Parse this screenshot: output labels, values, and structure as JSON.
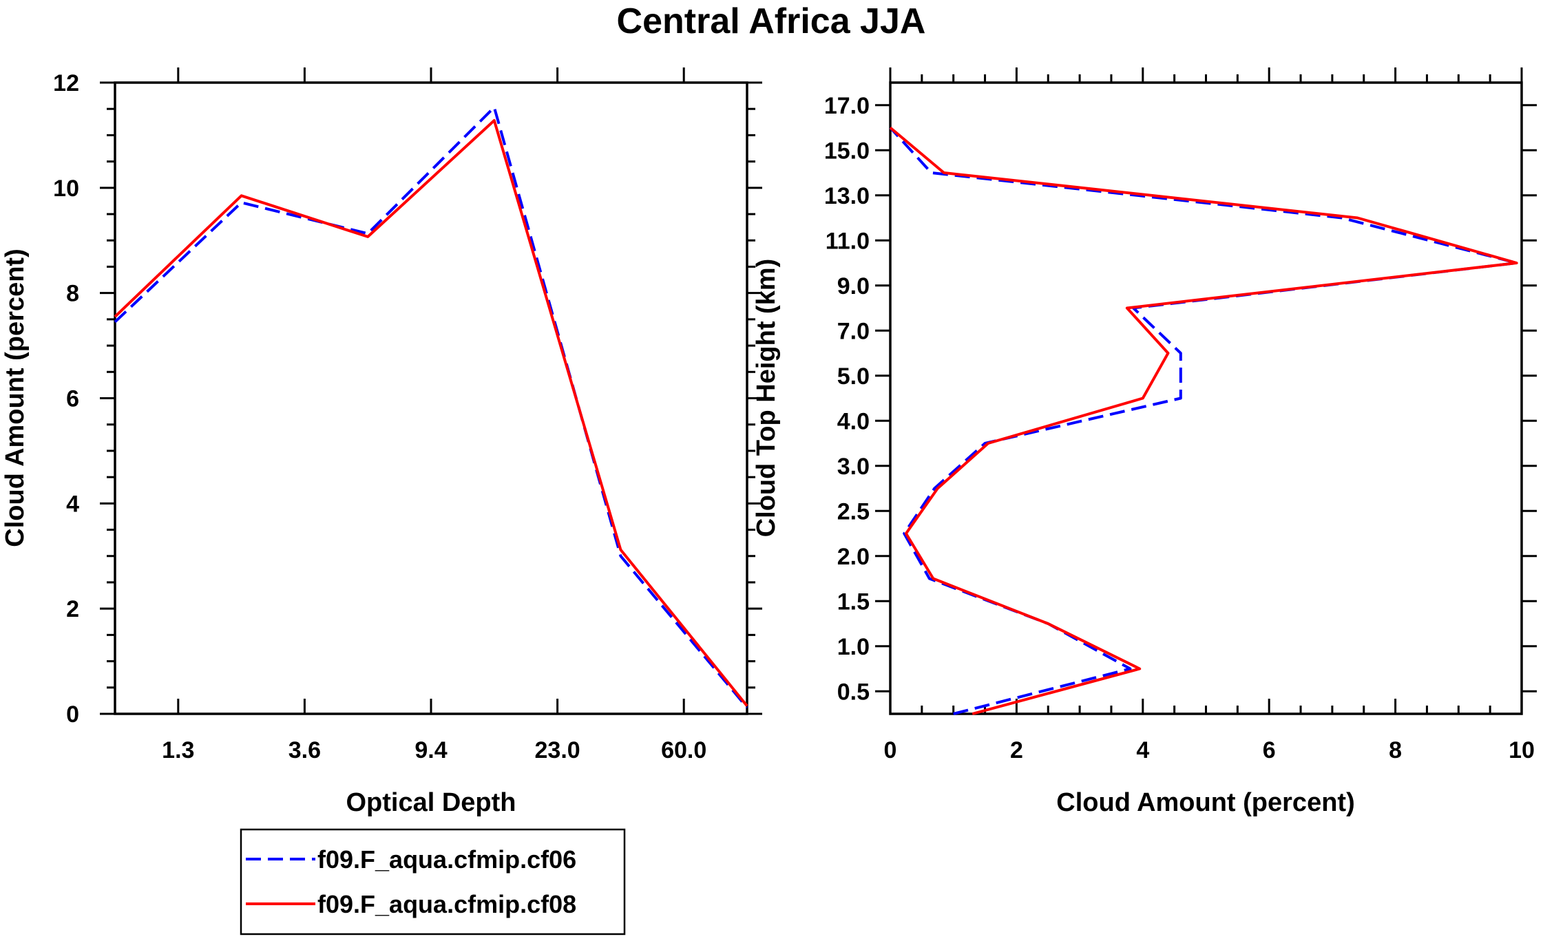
{
  "figure_title": "Central Africa JJA",
  "legend": [
    {
      "label": "f09.F_aqua.cfmip.cf06",
      "color": "#0000ff",
      "dash": true
    },
    {
      "label": "f09.F_aqua.cfmip.cf08",
      "color": "#ff0000",
      "dash": false
    }
  ],
  "chart_data": [
    {
      "type": "line",
      "title": "",
      "xlabel": "Optical Depth",
      "ylabel": "Cloud Amount (percent)",
      "x_index_range": [
        0,
        5
      ],
      "x_tick_positions": [
        0.5,
        1.5,
        2.5,
        3.5,
        4.5
      ],
      "x_tick_labels": [
        "1.3",
        "3.6",
        "9.4",
        "23.0",
        "60.0"
      ],
      "ylim": [
        0,
        12
      ],
      "y_ticks": [
        0,
        2,
        4,
        6,
        8,
        10,
        12
      ],
      "y_tick_labels": [
        "0",
        "2",
        "4",
        "6",
        "8",
        "10",
        "12"
      ],
      "x": [
        0,
        1,
        2,
        3,
        4,
        5
      ],
      "series": [
        {
          "name": "f09.F_aqua.cfmip.cf06",
          "values": [
            7.45,
            9.72,
            9.13,
            11.53,
            3.0,
            0.12
          ]
        },
        {
          "name": "f09.F_aqua.cfmip.cf08",
          "values": [
            7.55,
            9.85,
            9.07,
            11.28,
            3.12,
            0.15
          ]
        }
      ]
    },
    {
      "type": "line",
      "title": "",
      "xlabel": "Cloud Amount (percent)",
      "ylabel": "Cloud Top Height (km)",
      "xlim": [
        0,
        10
      ],
      "x_ticks": [
        0,
        2,
        4,
        6,
        8,
        10
      ],
      "x_tick_labels": [
        "0",
        "2",
        "4",
        "6",
        "8",
        "10"
      ],
      "y_index_range": [
        0,
        14
      ],
      "y_tick_positions": [
        0.5,
        1.5,
        2.5,
        3.5,
        4.5,
        5.5,
        6.5,
        7.5,
        8.5,
        9.5,
        10.5,
        11.5,
        12.5,
        13.5
      ],
      "y_tick_labels": [
        "0.5",
        "1.0",
        "1.5",
        "2.0",
        "2.5",
        "3.0",
        "4.0",
        "5.0",
        "7.0",
        "9.0",
        "11.0",
        "13.0",
        "15.0",
        "17.0"
      ],
      "y": [
        0,
        1,
        2,
        3,
        4,
        5,
        6,
        7,
        8,
        9,
        10,
        11,
        12,
        13,
        14
      ],
      "series": [
        {
          "name": "f09.F_aqua.cfmip.cf06",
          "values": [
            1.0,
            3.8,
            2.5,
            0.62,
            0.22,
            0.7,
            1.5,
            4.6,
            4.6,
            3.85,
            9.92,
            7.15,
            0.65,
            0.0,
            null
          ]
        },
        {
          "name": "f09.F_aqua.cfmip.cf08",
          "values": [
            1.3,
            3.95,
            2.5,
            0.68,
            0.25,
            0.75,
            1.55,
            4.0,
            4.4,
            3.75,
            9.92,
            7.4,
            0.85,
            0.0,
            null
          ]
        }
      ]
    }
  ]
}
